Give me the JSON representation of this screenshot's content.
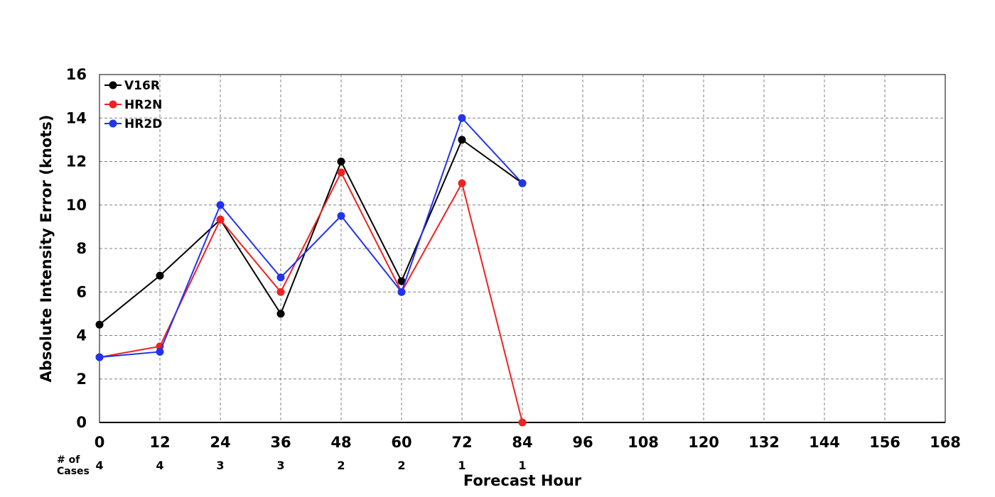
{
  "chart_data": {
    "type": "line",
    "title": "",
    "xlabel": "Forecast Hour",
    "ylabel": "Absolute Intensity Error (knots)",
    "xlim": [
      0,
      168
    ],
    "ylim": [
      0,
      16
    ],
    "x_ticks": [
      0,
      12,
      24,
      36,
      48,
      60,
      72,
      84,
      96,
      108,
      120,
      132,
      144,
      156,
      168
    ],
    "y_ticks": [
      0,
      2,
      4,
      6,
      8,
      10,
      12,
      14,
      16
    ],
    "grid": true,
    "legend_position": "top-left",
    "cases_label_line1": "# of",
    "cases_label_line2": "Cases",
    "cases": [
      {
        "x": 0,
        "label": "4"
      },
      {
        "x": 12,
        "label": "4"
      },
      {
        "x": 24,
        "label": "3"
      },
      {
        "x": 36,
        "label": "3"
      },
      {
        "x": 48,
        "label": "2"
      },
      {
        "x": 60,
        "label": "2"
      },
      {
        "x": 72,
        "label": "1"
      },
      {
        "x": 84,
        "label": "1"
      }
    ],
    "series": [
      {
        "name": "V16R",
        "color": "#000000",
        "x": [
          0,
          12,
          24,
          36,
          48,
          60,
          72,
          84
        ],
        "values": [
          4.5,
          6.75,
          9.33,
          5.0,
          12.0,
          6.5,
          13.0,
          11.0
        ]
      },
      {
        "name": "HR2N",
        "color": "#ee2222",
        "x": [
          0,
          12,
          24,
          36,
          48,
          60,
          72,
          84
        ],
        "values": [
          3.0,
          3.5,
          9.33,
          6.0,
          11.5,
          6.0,
          11.0,
          0.0
        ]
      },
      {
        "name": "HR2D",
        "color": "#2233ee",
        "x": [
          0,
          12,
          24,
          36,
          48,
          60,
          72,
          84
        ],
        "values": [
          3.0,
          3.25,
          10.0,
          6.67,
          9.5,
          6.0,
          14.0,
          11.0
        ]
      }
    ]
  }
}
